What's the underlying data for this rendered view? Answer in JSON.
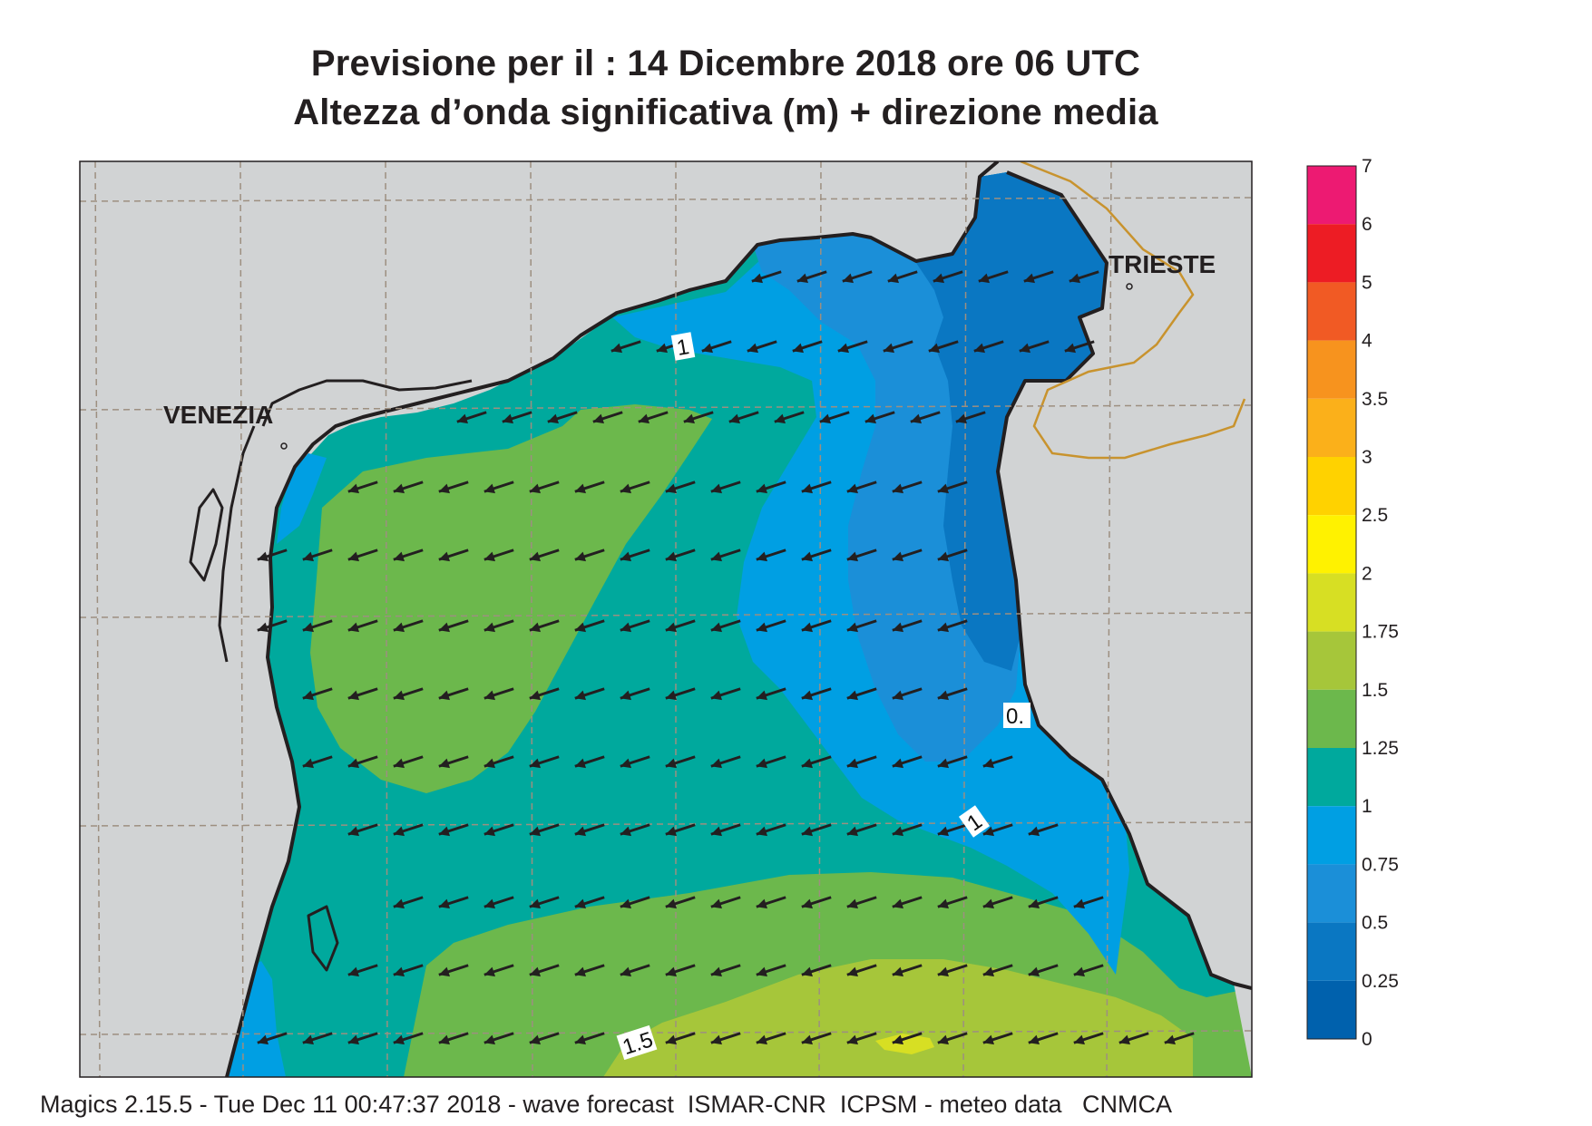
{
  "header": {
    "line1": "Previsione per il  :  14 Dicembre  2018   ore 06 UTC",
    "line2": "Altezza d’onda significativa (m) + direzione media"
  },
  "map": {
    "cities": [
      {
        "name": "VENEZIA"
      },
      {
        "name": "TRIESTE"
      }
    ],
    "contour_labels": [
      "1",
      "0.",
      "1",
      "1.5"
    ],
    "arrow_direction": "west-southwest",
    "colors": {
      "land": "#d1d3d4",
      "coast": "#231f20",
      "border": "#c8932e",
      "grid": "#9d8f80"
    }
  },
  "legend": {
    "title": "",
    "levels": [
      {
        "label": "7",
        "color": "#ed1a72"
      },
      {
        "label": "6",
        "color": "#ed1c24"
      },
      {
        "label": "5",
        "color": "#f15a24"
      },
      {
        "label": "4",
        "color": "#f7931e"
      },
      {
        "label": "3.5",
        "color": "#fbb01a"
      },
      {
        "label": "3",
        "color": "#ffd200"
      },
      {
        "label": "2.5",
        "color": "#fff200"
      },
      {
        "label": "2",
        "color": "#d7df23"
      },
      {
        "label": "1.75",
        "color": "#a6c63a"
      },
      {
        "label": "1.5",
        "color": "#6cb84c"
      },
      {
        "label": "1.25",
        "color": "#00a99d"
      },
      {
        "label": "1",
        "color": "#009fe3"
      },
      {
        "label": "0.75",
        "color": "#1b8fd8"
      },
      {
        "label": "0.5",
        "color": "#0a77c2"
      },
      {
        "label": "0.25",
        "color": "#0061ad"
      },
      {
        "label": "0",
        "color": ""
      }
    ]
  },
  "footer": "Magics 2.15.5 - Tue Dec 11 00:47:37 2018 - wave forecast  ISMAR-CNR  ICPSM - meteo data   CNMCA"
}
